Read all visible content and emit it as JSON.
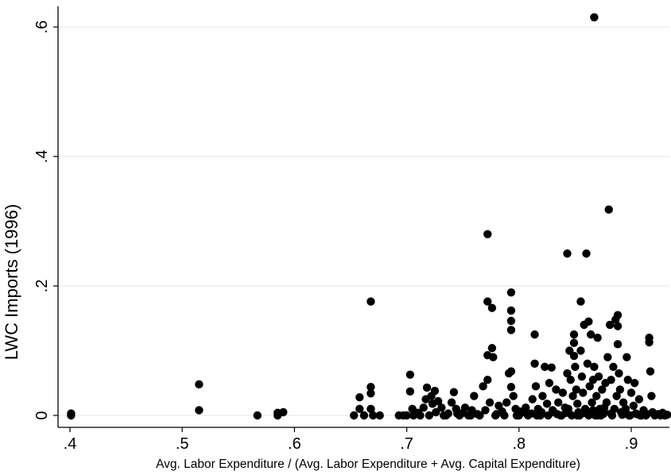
{
  "chart_data": {
    "type": "scatter",
    "title": "",
    "xlabel": "Avg. Labor Expenditure / (Avg. Labor Expenditure + Avg. Capital Expenditure)",
    "ylabel": "LWC Imports (1996)",
    "xlim": [
      0.39,
      0.935
    ],
    "ylim": [
      -0.012,
      0.63
    ],
    "xticks": [
      {
        "value": 0.4,
        "label": ".4"
      },
      {
        "value": 0.5,
        "label": ".5"
      },
      {
        "value": 0.6,
        "label": ".6"
      },
      {
        "value": 0.7,
        "label": ".7"
      },
      {
        "value": 0.8,
        "label": ".8"
      },
      {
        "value": 0.9,
        "label": ".9"
      }
    ],
    "yticks": [
      {
        "value": 0,
        "label": "0"
      },
      {
        "value": 0.2,
        "label": ".2"
      },
      {
        "value": 0.4,
        "label": ".4"
      },
      {
        "value": 0.6,
        "label": ".6"
      }
    ],
    "grid": true,
    "marker_color": "#000000",
    "grid_color": "#e6f2f2",
    "points": [
      [
        0.401,
        0.0
      ],
      [
        0.401,
        0.003
      ],
      [
        0.515,
        0.048
      ],
      [
        0.515,
        0.008
      ],
      [
        0.567,
        0.0
      ],
      [
        0.585,
        0.0
      ],
      [
        0.585,
        0.004
      ],
      [
        0.59,
        0.005
      ],
      [
        0.653,
        0.0
      ],
      [
        0.658,
        0.028
      ],
      [
        0.658,
        0.01
      ],
      [
        0.662,
        0.0
      ],
      [
        0.668,
        0.176
      ],
      [
        0.668,
        0.044
      ],
      [
        0.668,
        0.034
      ],
      [
        0.668,
        0.01
      ],
      [
        0.67,
        0.0
      ],
      [
        0.676,
        0.0
      ],
      [
        0.693,
        0.0
      ],
      [
        0.697,
        0.0
      ],
      [
        0.7,
        0.0
      ],
      [
        0.703,
        0.063
      ],
      [
        0.703,
        0.037
      ],
      [
        0.705,
        0.01
      ],
      [
        0.707,
        0.002
      ],
      [
        0.712,
        0.0
      ],
      [
        0.715,
        0.012
      ],
      [
        0.717,
        0.025
      ],
      [
        0.718,
        0.043
      ],
      [
        0.72,
        0.0
      ],
      [
        0.722,
        0.03
      ],
      [
        0.723,
        0.018
      ],
      [
        0.725,
        0.038
      ],
      [
        0.726,
        0.005
      ],
      [
        0.728,
        0.022
      ],
      [
        0.731,
        0.012
      ],
      [
        0.733,
        0.0
      ],
      [
        0.737,
        0.003
      ],
      [
        0.74,
        0.02
      ],
      [
        0.742,
        0.036
      ],
      [
        0.744,
        0.01
      ],
      [
        0.747,
        0.0
      ],
      [
        0.75,
        0.004
      ],
      [
        0.752,
        0.012
      ],
      [
        0.755,
        0.0
      ],
      [
        0.758,
        0.008
      ],
      [
        0.76,
        0.03
      ],
      [
        0.763,
        0.002
      ],
      [
        0.765,
        0.0
      ],
      [
        0.768,
        0.045
      ],
      [
        0.77,
        0.008
      ],
      [
        0.772,
        0.28
      ],
      [
        0.772,
        0.176
      ],
      [
        0.772,
        0.093
      ],
      [
        0.772,
        0.055
      ],
      [
        0.774,
        0.02
      ],
      [
        0.776,
        0.104
      ],
      [
        0.776,
        0.166
      ],
      [
        0.777,
        0.09
      ],
      [
        0.779,
        0.0
      ],
      [
        0.782,
        0.015
      ],
      [
        0.785,
        0.006
      ],
      [
        0.787,
        0.0
      ],
      [
        0.789,
        0.02
      ],
      [
        0.791,
        0.065
      ],
      [
        0.793,
        0.19
      ],
      [
        0.793,
        0.162
      ],
      [
        0.793,
        0.146
      ],
      [
        0.793,
        0.132
      ],
      [
        0.793,
        0.068
      ],
      [
        0.793,
        0.044
      ],
      [
        0.795,
        0.03
      ],
      [
        0.797,
        0.01
      ],
      [
        0.8,
        0.0
      ],
      [
        0.803,
        0.005
      ],
      [
        0.806,
        0.012
      ],
      [
        0.809,
        0.002
      ],
      [
        0.812,
        0.025
      ],
      [
        0.814,
        0.125
      ],
      [
        0.814,
        0.08
      ],
      [
        0.815,
        0.045
      ],
      [
        0.817,
        0.01
      ],
      [
        0.819,
        0.0
      ],
      [
        0.821,
        0.03
      ],
      [
        0.823,
        0.075
      ],
      [
        0.825,
        0.018
      ],
      [
        0.827,
        0.05
      ],
      [
        0.829,
        0.074
      ],
      [
        0.831,
        0.005
      ],
      [
        0.833,
        0.04
      ],
      [
        0.835,
        0.02
      ],
      [
        0.837,
        0.0
      ],
      [
        0.839,
        0.035
      ],
      [
        0.841,
        0.012
      ],
      [
        0.843,
        0.25
      ],
      [
        0.843,
        0.065
      ],
      [
        0.845,
        0.1
      ],
      [
        0.846,
        0.055
      ],
      [
        0.848,
        0.03
      ],
      [
        0.849,
        0.125
      ],
      [
        0.849,
        0.112
      ],
      [
        0.849,
        0.092
      ],
      [
        0.85,
        0.075
      ],
      [
        0.851,
        0.04
      ],
      [
        0.852,
        0.018
      ],
      [
        0.853,
        0.005
      ],
      [
        0.855,
        0.176
      ],
      [
        0.855,
        0.1
      ],
      [
        0.856,
        0.06
      ],
      [
        0.857,
        0.035
      ],
      [
        0.858,
        0.14
      ],
      [
        0.859,
        0.01
      ],
      [
        0.86,
        0.25
      ],
      [
        0.861,
        0.08
      ],
      [
        0.862,
        0.145
      ],
      [
        0.863,
        0.045
      ],
      [
        0.864,
        0.125
      ],
      [
        0.865,
        0.02
      ],
      [
        0.866,
        0.055
      ],
      [
        0.867,
        0.615
      ],
      [
        0.867,
        0.075
      ],
      [
        0.868,
        0.0
      ],
      [
        0.869,
        0.03
      ],
      [
        0.87,
        0.12
      ],
      [
        0.871,
        0.06
      ],
      [
        0.872,
        0.01
      ],
      [
        0.874,
        0.04
      ],
      [
        0.875,
        0.002
      ],
      [
        0.877,
        0.05
      ],
      [
        0.878,
        0.02
      ],
      [
        0.879,
        0.09
      ],
      [
        0.88,
        0.318
      ],
      [
        0.881,
        0.14
      ],
      [
        0.882,
        0.055
      ],
      [
        0.884,
        0.075
      ],
      [
        0.885,
        0.01
      ],
      [
        0.886,
        0.148
      ],
      [
        0.887,
        0.03
      ],
      [
        0.888,
        0.155
      ],
      [
        0.888,
        0.138
      ],
      [
        0.888,
        0.11
      ],
      [
        0.889,
        0.065
      ],
      [
        0.89,
        0.04
      ],
      [
        0.891,
        0.005
      ],
      [
        0.893,
        0.02
      ],
      [
        0.895,
        0.01
      ],
      [
        0.896,
        0.09
      ],
      [
        0.897,
        0.055
      ],
      [
        0.898,
        0.0
      ],
      [
        0.9,
        0.035
      ],
      [
        0.902,
        0.015
      ],
      [
        0.903,
        0.05
      ],
      [
        0.905,
        0.002
      ],
      [
        0.907,
        0.025
      ],
      [
        0.909,
        0.0
      ],
      [
        0.911,
        0.008
      ],
      [
        0.913,
        0.0
      ],
      [
        0.916,
        0.12
      ],
      [
        0.916,
        0.113
      ],
      [
        0.917,
        0.068
      ],
      [
        0.918,
        0.03
      ],
      [
        0.919,
        0.005
      ],
      [
        0.921,
        0.0
      ],
      [
        0.924,
        0.002
      ],
      [
        0.926,
        0.0
      ],
      [
        0.928,
        0.004
      ],
      [
        0.93,
        0.0
      ],
      [
        0.932,
        0.001
      ],
      [
        0.706,
        0.0
      ],
      [
        0.71,
        0.004
      ],
      [
        0.735,
        0.0
      ],
      [
        0.745,
        0.003
      ],
      [
        0.757,
        0.0
      ],
      [
        0.78,
        0.002
      ],
      [
        0.798,
        0.0
      ],
      [
        0.801,
        0.006
      ],
      [
        0.808,
        0.0
      ],
      [
        0.811,
        0.003
      ],
      [
        0.816,
        0.0
      ],
      [
        0.82,
        0.005
      ],
      [
        0.826,
        0.0
      ],
      [
        0.83,
        0.008
      ],
      [
        0.834,
        0.002
      ],
      [
        0.838,
        0.0
      ],
      [
        0.842,
        0.004
      ],
      [
        0.847,
        0.0
      ],
      [
        0.854,
        0.0
      ],
      [
        0.862,
        0.003
      ],
      [
        0.873,
        0.0
      ],
      [
        0.876,
        0.005
      ],
      [
        0.883,
        0.0
      ],
      [
        0.892,
        0.001
      ],
      [
        0.899,
        0.0
      ],
      [
        0.904,
        0.003
      ],
      [
        0.908,
        0.0
      ],
      [
        0.914,
        0.002
      ],
      [
        0.862,
        0.0
      ],
      [
        0.866,
        0.008
      ],
      [
        0.844,
        0.01
      ],
      [
        0.852,
        0.0
      ],
      [
        0.858,
        0.004
      ],
      [
        0.87,
        0.0
      ],
      [
        0.876,
        0.012
      ],
      [
        0.882,
        0.003
      ]
    ]
  }
}
